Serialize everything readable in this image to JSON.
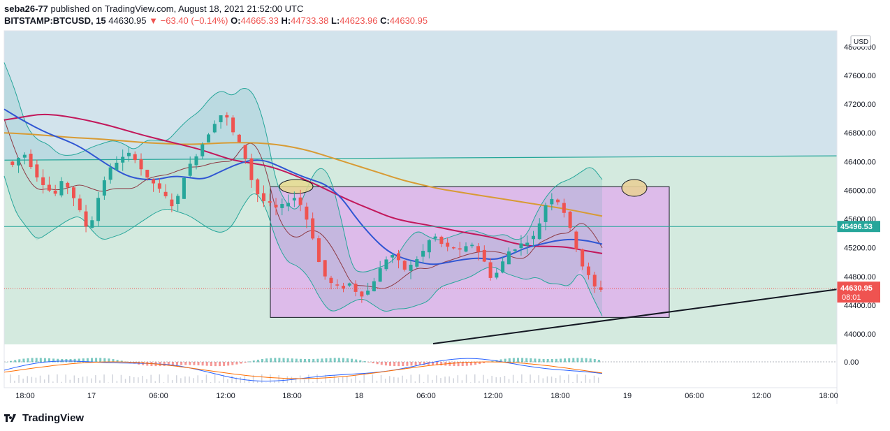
{
  "header": {
    "author": "seba26-77",
    "published_text": "published on TradingView.com, August 18, 2021 21:52:00 UTC",
    "symbol": "BITSTAMP:BTCUSD, 15",
    "price": "44630.95",
    "change": "−63.40 (−0.14%)",
    "open_label": "O:",
    "open": "44665.33",
    "high_label": "H:",
    "high": "44733.38",
    "low_label": "L:",
    "low": "44623.96",
    "close_label": "C:",
    "close": "44630.95"
  },
  "chart_data": {
    "type": "candlestick",
    "currency": "USD",
    "y_ticks": [
      "47600.00",
      "47200.00",
      "46800.00",
      "46400.00",
      "46000.00",
      "45600.00",
      "45200.00",
      "44800.00",
      "44400.00",
      "44000.00"
    ],
    "y_tick_values": [
      47600,
      47200,
      46800,
      46400,
      46000,
      45600,
      45200,
      44800,
      44400,
      44000
    ],
    "top_tick_partial": "48000.00",
    "x_ticks": [
      "18:00",
      "17",
      "06:00",
      "12:00",
      "18:00",
      "18",
      "06:00",
      "12:00",
      "18:00",
      "19",
      "06:00",
      "12:00",
      "18:00"
    ],
    "ylim": [
      43870,
      48500
    ],
    "horizontal_line": {
      "value": 45496.53,
      "label": "45496.53",
      "color": "#26a69a"
    },
    "last_price": {
      "value": 44630.95,
      "label": "44630.95",
      "countdown": "08:01",
      "color": "#ef5350"
    },
    "oscillator": {
      "zero_label": "0.00"
    },
    "colors": {
      "up": "#26a69a",
      "down": "#ef5350",
      "upper_zone": "#d2e3ec",
      "lower_zone": "#d4eadf",
      "box": "#ddb8ea",
      "ma_red": "#c2185b",
      "ma_blue": "#3056d3",
      "ma_orange": "#d89b34",
      "bb": "#26a69a",
      "bb_mid": "#8e3b45"
    }
  },
  "watermark": {
    "brand": "TradingView"
  }
}
